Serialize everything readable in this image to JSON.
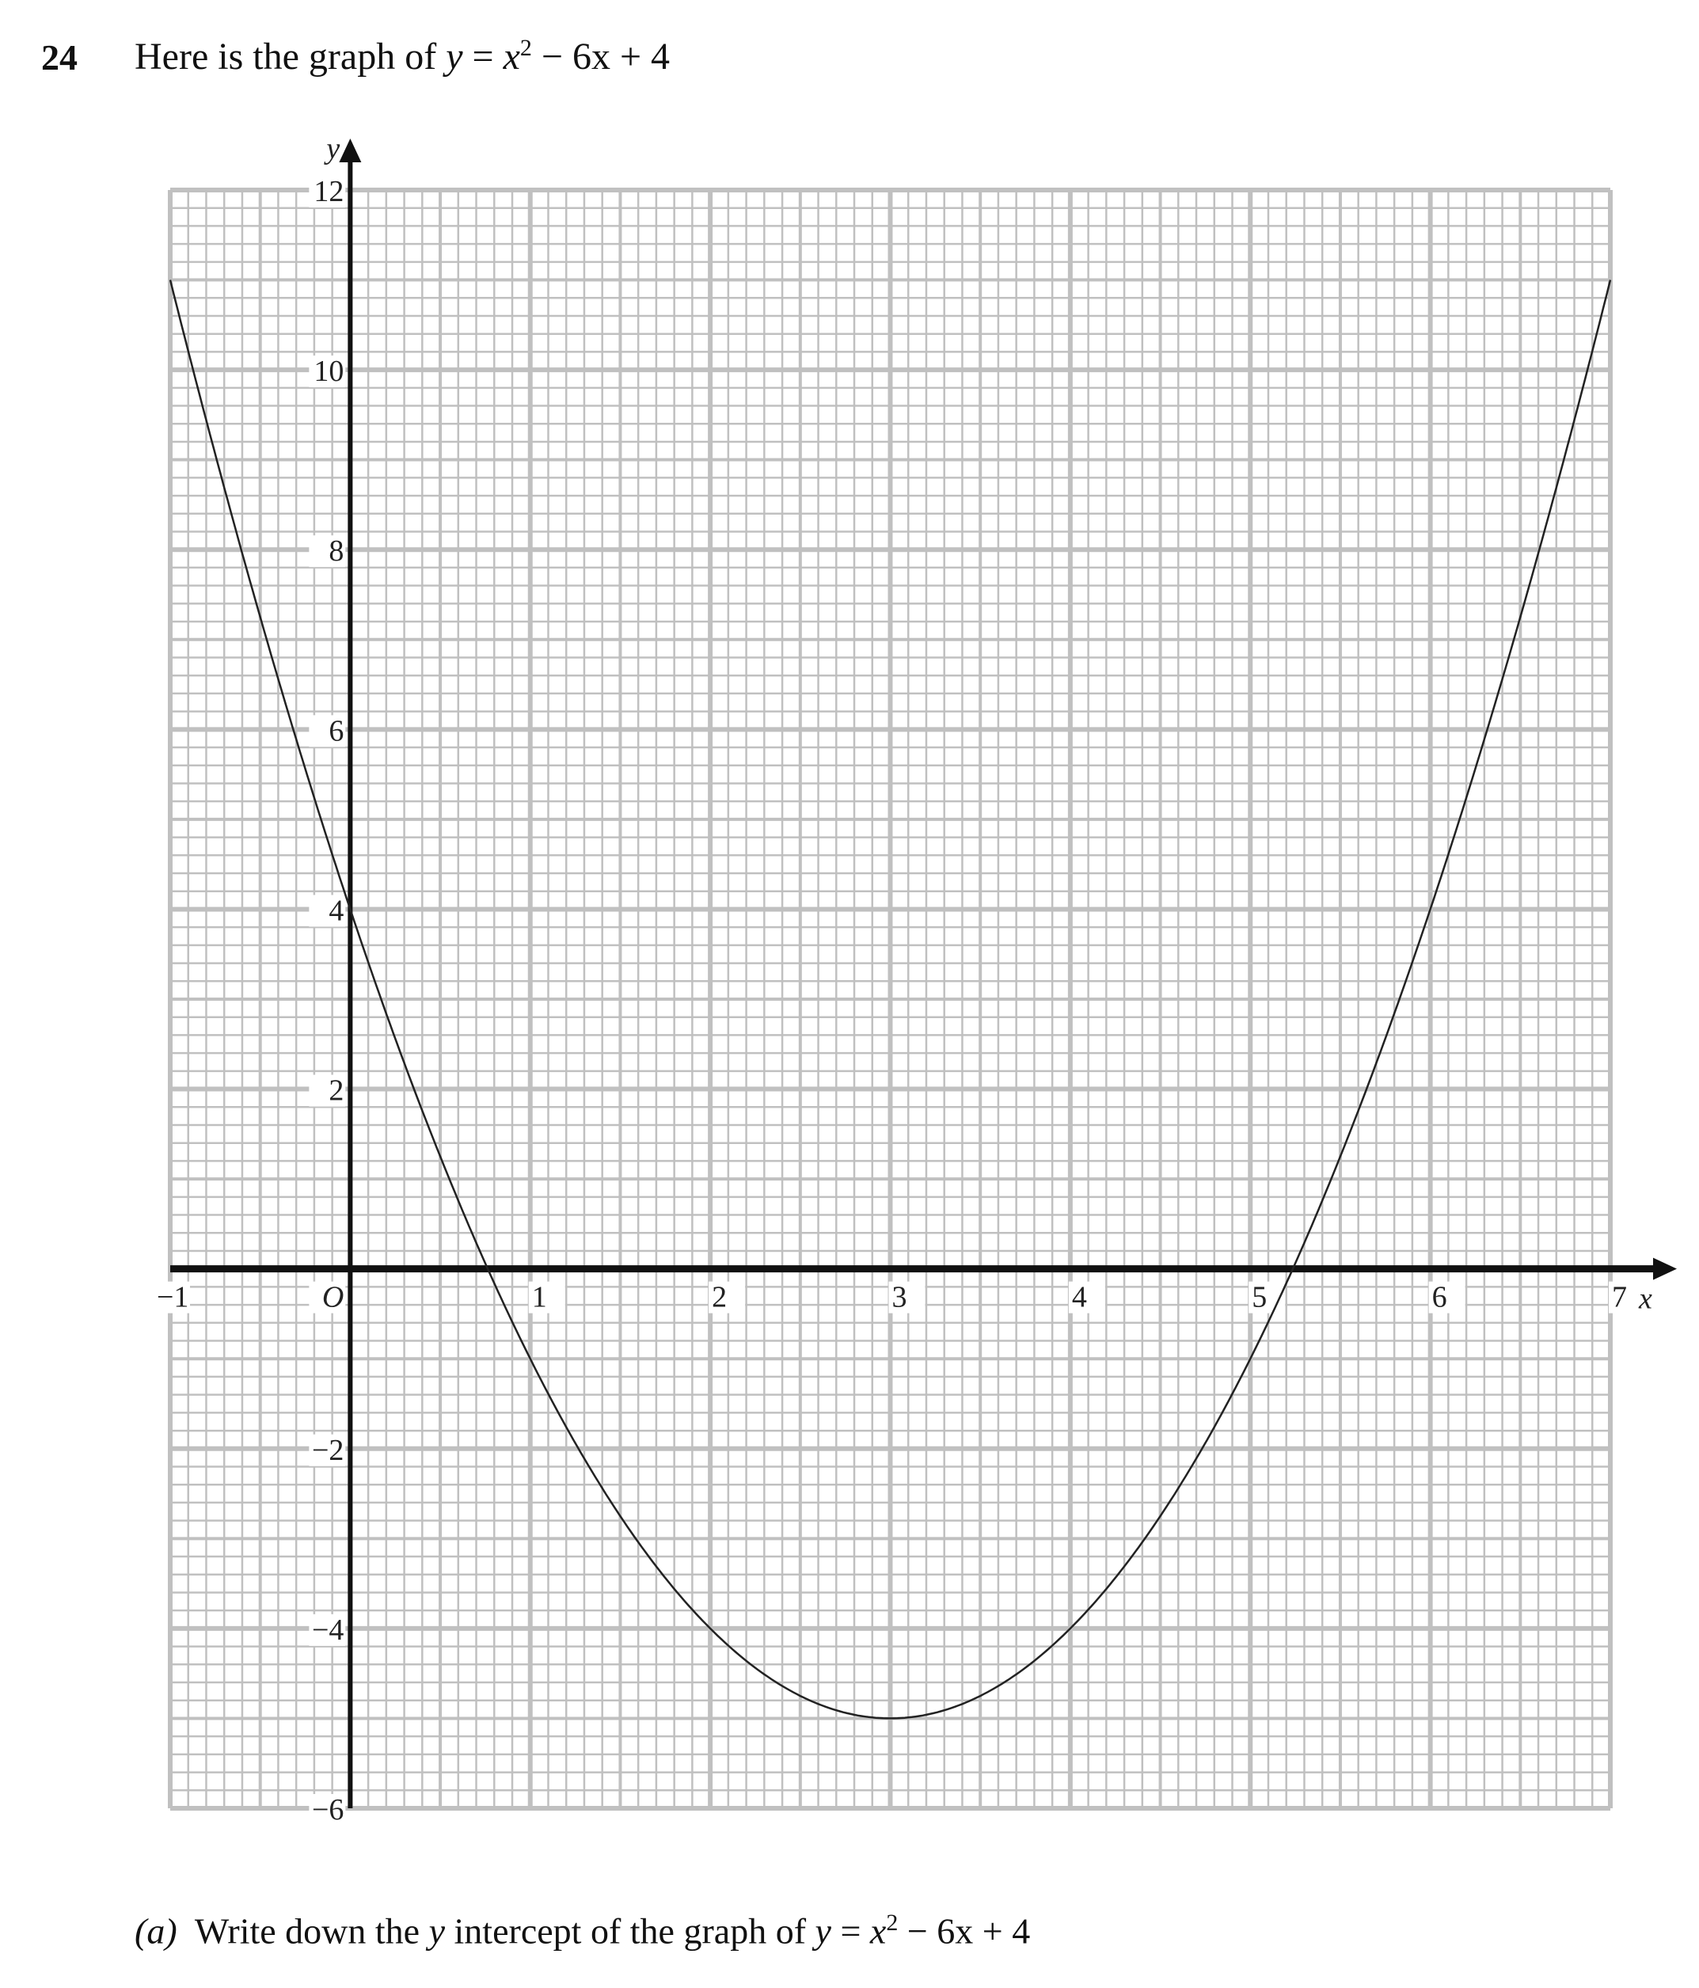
{
  "question": {
    "number": "24",
    "intro": "Here is the graph of",
    "equation": {
      "lhs": "y",
      "eq": " = ",
      "x": "x",
      "exp": "2",
      "rest": " − 6x + 4"
    },
    "part_a": {
      "label": "(a)",
      "text": "Write down the",
      "var": "y",
      "text2": "intercept of the graph of"
    }
  },
  "chart_data": {
    "type": "line",
    "function": "y = x^2 - 6x + 4",
    "xlabel": "x",
    "ylabel": "y",
    "xlim": [
      -1,
      7
    ],
    "ylim": [
      -6,
      12
    ],
    "origin_label": "O",
    "x_ticks": [
      "−1",
      "1",
      "2",
      "3",
      "4",
      "5",
      "6",
      "7"
    ],
    "x_tick_values": [
      -1,
      1,
      2,
      3,
      4,
      5,
      6,
      7
    ],
    "y_ticks": [
      "12",
      "10",
      "8",
      "6",
      "4",
      "2",
      "−2",
      "−4",
      "−6"
    ],
    "y_tick_values": [
      12,
      10,
      8,
      6,
      4,
      2,
      -2,
      -4,
      -6
    ],
    "grid": true,
    "series": [
      {
        "x": [
          -1,
          -0.5,
          0,
          0.5,
          1,
          1.5,
          2,
          2.5,
          3,
          3.5,
          4,
          4.5,
          5,
          5.5,
          6,
          6.5,
          7
        ],
        "y": [
          11,
          7.25,
          4,
          1.25,
          -1,
          -2.75,
          -4,
          -4.75,
          -5,
          -4.75,
          -4,
          -2.75,
          -1,
          1.25,
          4,
          7.25,
          11
        ]
      }
    ],
    "colors": {
      "grid": "#c0c0c0",
      "axis": "#111111",
      "curve": "#222222"
    }
  }
}
